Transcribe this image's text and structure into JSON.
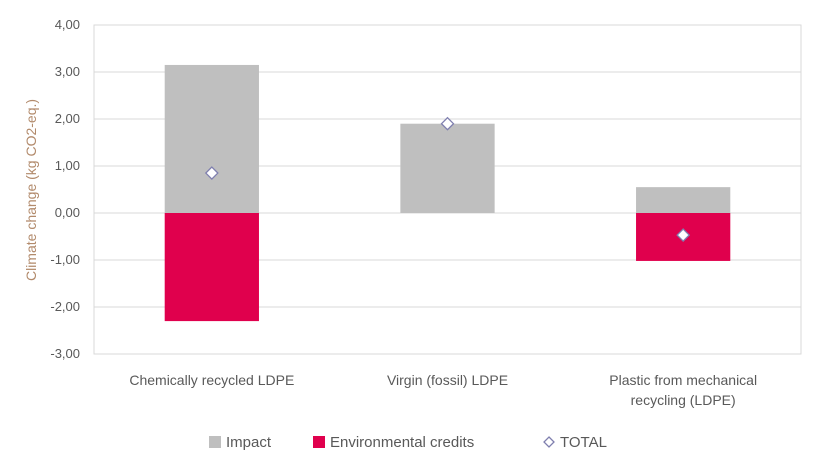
{
  "chart_data": {
    "type": "bar",
    "stacked": true,
    "ylabel": "Climate change (kg CO2-eq.)",
    "ylim": [
      -3,
      4
    ],
    "yticks": [
      4,
      3,
      2,
      1,
      0,
      -1,
      -2,
      -3
    ],
    "ytick_labels": [
      "4,00",
      "3,00",
      "2,00",
      "1,00",
      "0,00",
      "-1,00",
      "-2,00",
      "-3,00"
    ],
    "grid": true,
    "legend_position": "bottom",
    "categories": [
      [
        "Chemically recycled LDPE"
      ],
      [
        "Virgin (fossil) LDPE"
      ],
      [
        "Plastic from mechanical",
        "recycling (LDPE)"
      ]
    ],
    "series": [
      {
        "name": "Impact",
        "type": "bar",
        "color": "#bfbfbf",
        "values": [
          3.15,
          1.9,
          0.55
        ]
      },
      {
        "name": "Environmental credits",
        "type": "bar",
        "color": "#e0004d",
        "values": [
          -2.3,
          0,
          -1.02
        ]
      },
      {
        "name": "TOTAL",
        "type": "marker",
        "marker": "diamond",
        "color": "#7f7faf",
        "values": [
          0.85,
          1.9,
          -0.47
        ]
      }
    ]
  }
}
